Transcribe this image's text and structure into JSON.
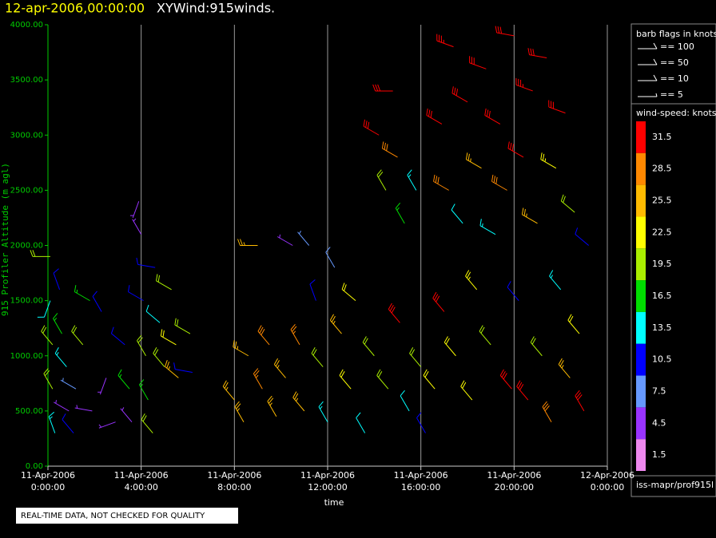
{
  "chart_data": {
    "type": "windbarb",
    "title": "12-apr-2006,00:00:00",
    "subtitle": "XYWind:915winds.",
    "y_label": "915 Profiler Altitude (m agl)",
    "x_label": "time",
    "note": "REAL-TIME DATA, NOT CHECKED FOR QUALITY",
    "source": "iss-mapr/prof915l",
    "flag_legend_title": "barb flags in knots",
    "flag_legend": [
      "== 100",
      "== 50",
      "== 10",
      "== 5"
    ],
    "speed_legend_title": "wind-speed: knots",
    "speed_legend": {
      "values": [
        31.5,
        28.5,
        25.5,
        22.5,
        19.5,
        16.5,
        13.5,
        10.5,
        7.5,
        4.5,
        1.5
      ],
      "colors": [
        "#ff0000",
        "#ff8800",
        "#ffbb00",
        "#ffff00",
        "#aaee00",
        "#00dd00",
        "#00ffff",
        "#0000ff",
        "#6699ff",
        "#9933ff",
        "#ee88ee"
      ]
    },
    "xlim": [
      0,
      24
    ],
    "ylim": [
      0,
      4000
    ],
    "xticks": [
      {
        "value": 0,
        "label": "11-Apr-2006 0:00:00"
      },
      {
        "value": 4,
        "label": "11-Apr-2006 4:00:00"
      },
      {
        "value": 8,
        "label": "11-Apr-2006 8:00:00"
      },
      {
        "value": 12,
        "label": "11-Apr-2006 12:00:00"
      },
      {
        "value": 16,
        "label": "11-Apr-2006 16:00:00"
      },
      {
        "value": 20,
        "label": "11-Apr-2006 20:00:00"
      },
      {
        "value": 24,
        "label": "12-Apr-2006 0:00:00"
      }
    ],
    "yticks": [
      {
        "value": 0,
        "label": "0.00"
      },
      {
        "value": 500,
        "label": "500.00"
      },
      {
        "value": 1000,
        "label": "1000.00"
      },
      {
        "value": 1500,
        "label": "1500.00"
      },
      {
        "value": 2000,
        "label": "2000.00"
      },
      {
        "value": 2500,
        "label": "2500.00"
      },
      {
        "value": 3000,
        "label": "3000.00"
      },
      {
        "value": 3500,
        "label": "3500.00"
      },
      {
        "value": 4000,
        "label": "4000.00"
      }
    ],
    "grid": true,
    "barbs": {
      "x": [
        0.1,
        0.1,
        0.2,
        0.2,
        0.3,
        0.5,
        0.6,
        0.8,
        0.9,
        1.1,
        1.2,
        1.5,
        1.8,
        1.9,
        2.3,
        2.5,
        2.9,
        3.3,
        3.5,
        3.6,
        3.9,
        4.0,
        4.1,
        4.2,
        4.3,
        4.5,
        4.6,
        4.8,
        5.0,
        5.3,
        5.5,
        5.6,
        6.1,
        6.2,
        8.0,
        8.4,
        8.6,
        9.0,
        9.2,
        9.5,
        9.8,
        10.2,
        10.5,
        10.8,
        11.0,
        11.2,
        11.5,
        11.8,
        12.0,
        12.3,
        12.6,
        13.0,
        13.2,
        13.6,
        14.0,
        14.2,
        14.5,
        14.6,
        14.8,
        15.0,
        15.1,
        15.3,
        15.5,
        15.8,
        16.0,
        16.2,
        16.6,
        16.9,
        17.0,
        17.2,
        17.4,
        17.5,
        17.8,
        18.0,
        18.2,
        18.4,
        18.6,
        18.8,
        19.0,
        19.2,
        19.4,
        19.7,
        19.9,
        20.0,
        20.2,
        20.4,
        20.6,
        20.8,
        21.0,
        21.2,
        21.4,
        21.6,
        21.8,
        22.0,
        22.2,
        22.4,
        22.6,
        22.8,
        23.0,
        23.2
      ],
      "altitude": [
        1900,
        1500,
        1100,
        700,
        300,
        1600,
        1200,
        900,
        500,
        300,
        700,
        1100,
        1500,
        500,
        1400,
        800,
        400,
        1100,
        700,
        400,
        2400,
        2100,
        1500,
        1000,
        600,
        300,
        1800,
        1300,
        900,
        1600,
        1100,
        800,
        1200,
        850,
        600,
        400,
        1000,
        2000,
        700,
        1100,
        450,
        800,
        2000,
        1100,
        500,
        2000,
        1500,
        900,
        400,
        1800,
        1200,
        700,
        1500,
        300,
        1000,
        3000,
        2500,
        700,
        3400,
        2800,
        1300,
        2200,
        500,
        2500,
        900,
        300,
        700,
        3100,
        1400,
        2500,
        3800,
        1000,
        2200,
        3300,
        600,
        1600,
        2700,
        3600,
        1100,
        2100,
        3100,
        2500,
        700,
        3900,
        1500,
        2800,
        600,
        3400,
        2200,
        1000,
        3700,
        400,
        2700,
        1600,
        3200,
        800,
        2300,
        1200,
        500,
        2000
      ],
      "speed": [
        20,
        12,
        18,
        20,
        14,
        10,
        17,
        14,
        5,
        10,
        7,
        19,
        16,
        4,
        11,
        5,
        3,
        11,
        17,
        5,
        4,
        5,
        11,
        20,
        15,
        18,
        11,
        12,
        20,
        18,
        22,
        26,
        20,
        11,
        26,
        24,
        25,
        26,
        27,
        29,
        26,
        24,
        5,
        27,
        26,
        7,
        10,
        19,
        14,
        8,
        26,
        22,
        22,
        12,
        18,
        31,
        18,
        20,
        30,
        29,
        30,
        16,
        12,
        14,
        18,
        11,
        22,
        32,
        31,
        28,
        33,
        22,
        12,
        32,
        22,
        23,
        24,
        32,
        19,
        14,
        31,
        28,
        30,
        32,
        11,
        30,
        31,
        33,
        26,
        20,
        32,
        29,
        23,
        14,
        31,
        26,
        18,
        21,
        31,
        11
      ],
      "direction": [
        270,
        200,
        320,
        330,
        340,
        340,
        330,
        320,
        300,
        320,
        300,
        320,
        300,
        280,
        330,
        200,
        250,
        310,
        320,
        320,
        200,
        330,
        300,
        330,
        330,
        320,
        280,
        310,
        320,
        300,
        300,
        310,
        300,
        280,
        320,
        330,
        300,
        270,
        330,
        320,
        330,
        320,
        300,
        330,
        320,
        320,
        340,
        320,
        330,
        330,
        320,
        320,
        310,
        330,
        320,
        300,
        330,
        320,
        270,
        300,
        320,
        330,
        330,
        330,
        320,
        330,
        320,
        300,
        320,
        300,
        290,
        320,
        320,
        300,
        320,
        320,
        300,
        290,
        320,
        300,
        300,
        300,
        320,
        280,
        320,
        300,
        320,
        290,
        300,
        320,
        280,
        330,
        300,
        320,
        290,
        320,
        310,
        320,
        330,
        310
      ]
    }
  }
}
